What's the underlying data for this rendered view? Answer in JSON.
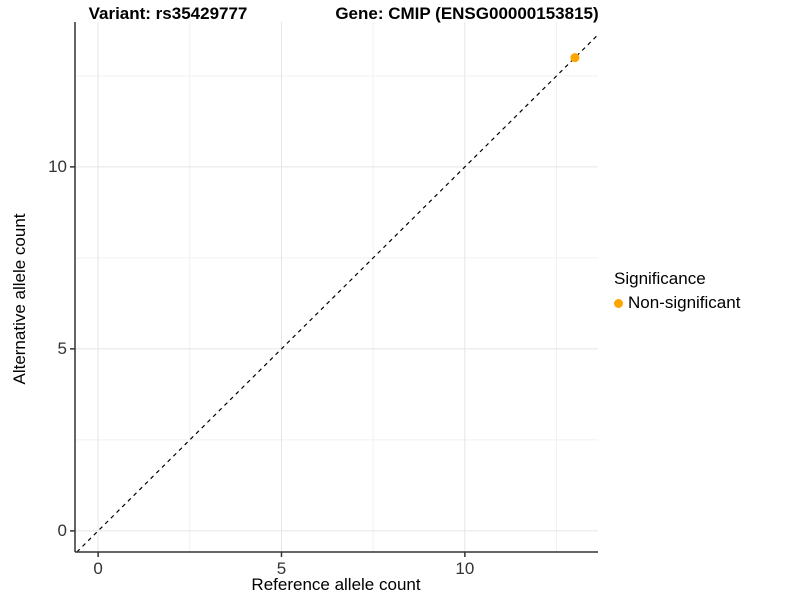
{
  "chart_data": {
    "type": "scatter",
    "titles": {
      "left": "Variant: rs35429777",
      "right": "Gene: CMIP (ENSG00000153815)"
    },
    "xlabel": "Reference allele count",
    "ylabel": "Alternative allele count",
    "xlim": [
      -0.63,
      13.63
    ],
    "ylim": [
      -0.58,
      13.98
    ],
    "x_major_ticks": [
      0,
      5,
      10
    ],
    "y_major_ticks": [
      0,
      5,
      10
    ],
    "x_minor_gridlines": [
      2.5,
      7.5,
      12.5
    ],
    "y_minor_gridlines": [
      2.5,
      7.5,
      12.5
    ],
    "grid": true,
    "points": [
      {
        "x": 13,
        "y": 13,
        "series": "Non-significant"
      }
    ],
    "reference_line": {
      "kind": "identity-abline",
      "slope": 1,
      "intercept": 0,
      "style": "dashed",
      "color": "#000000"
    },
    "legend": {
      "title": "Significance",
      "position": "right",
      "entries": [
        {
          "label": "Non-significant",
          "color": "#FFA500"
        }
      ]
    },
    "colors": {
      "point": "#FFA500",
      "grid_major": "#E5E5E5",
      "grid_minor": "#F1F1F1",
      "axis_line": "#333333",
      "tick_label": "#333333",
      "background": "#FFFFFF"
    }
  }
}
